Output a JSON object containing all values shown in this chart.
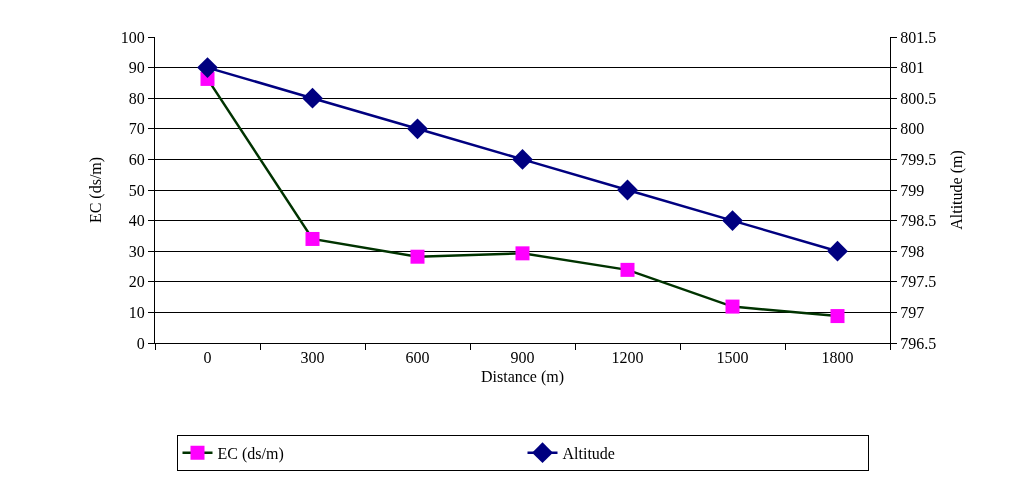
{
  "chart_data": {
    "type": "line",
    "xlabel": "Distance (m)",
    "ylabel": "EC (ds/m)",
    "y2label": "Altitude (m)",
    "categories": [
      "0",
      "300",
      "600",
      "900",
      "1200",
      "1500",
      "1800"
    ],
    "series": [
      {
        "name": "EC (ds/m)",
        "color": "#003300",
        "colors": [
          "#ff00ff",
          "#ff00ff",
          "#ff00ff",
          "#ff00ff",
          "#ff00ff",
          "#ff00ff",
          "#ff00ff"
        ],
        "marker": "square",
        "values": [
          86.3,
          34,
          28.2,
          29.3,
          23.9,
          11.9,
          8.8
        ]
      },
      {
        "name": "Altitude",
        "color": "#000080",
        "marker": "diamond",
        "axis": "y2",
        "values": [
          801,
          800.5,
          800,
          799.5,
          799,
          798.5,
          798
        ]
      }
    ],
    "ylim": [
      0,
      100
    ],
    "yticks": [
      0,
      10,
      20,
      30,
      40,
      50,
      60,
      70,
      80,
      90,
      100
    ],
    "y2lim": [
      796.5,
      801.5
    ],
    "y2ticks": [
      796.5,
      797,
      797.5,
      798,
      798.5,
      799,
      799.5,
      800,
      800.5,
      801,
      801.5
    ],
    "grid": "y",
    "legend": "bottom"
  }
}
